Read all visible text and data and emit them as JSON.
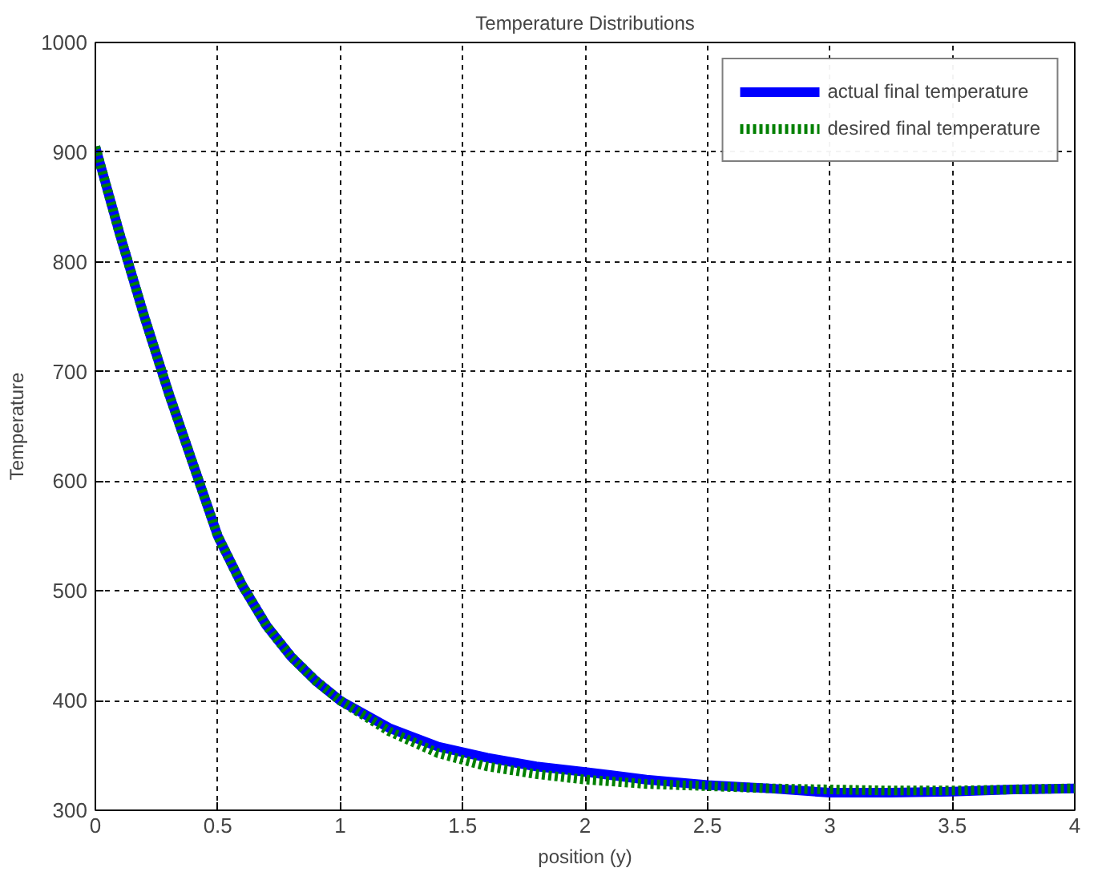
{
  "chart_data": {
    "type": "line",
    "title": "Temperature Distributions",
    "xlabel": "position (y)",
    "ylabel": "Temperature",
    "xlim": [
      0,
      4
    ],
    "ylim": [
      300,
      1000
    ],
    "xticks": [
      0,
      0.5,
      1,
      1.5,
      2,
      2.5,
      3,
      3.5,
      4
    ],
    "yticks": [
      300,
      400,
      500,
      600,
      700,
      800,
      900,
      1000
    ],
    "grid": true,
    "legend": "top right",
    "series": [
      {
        "name": "actual final temperature",
        "color": "#0000ff",
        "line_style": "solid",
        "x": [
          0,
          0.1,
          0.2,
          0.3,
          0.4,
          0.5,
          0.6,
          0.7,
          0.8,
          0.9,
          1.0,
          1.2,
          1.4,
          1.6,
          1.8,
          2.0,
          2.25,
          2.5,
          2.75,
          3.0,
          3.25,
          3.5,
          3.75,
          4.0
        ],
        "values": [
          905,
          825,
          750,
          680,
          615,
          550,
          505,
          468,
          440,
          418,
          400,
          375,
          358,
          348,
          340,
          335,
          328,
          323,
          320,
          316,
          316,
          317,
          319,
          320
        ]
      },
      {
        "name": "desired final temperature",
        "color": "#008000",
        "line_style": "dotted",
        "x": [
          0,
          0.1,
          0.2,
          0.3,
          0.4,
          0.5,
          0.6,
          0.7,
          0.8,
          0.9,
          1.0,
          1.2,
          1.4,
          1.6,
          1.8,
          2.0,
          2.25,
          2.5,
          2.75,
          3.0,
          3.25,
          3.5,
          3.75,
          4.0
        ],
        "values": [
          905,
          825,
          750,
          680,
          615,
          550,
          505,
          468,
          440,
          418,
          400,
          372,
          352,
          340,
          333,
          328,
          324,
          322,
          320,
          319,
          318,
          318,
          319,
          320
        ]
      }
    ]
  }
}
